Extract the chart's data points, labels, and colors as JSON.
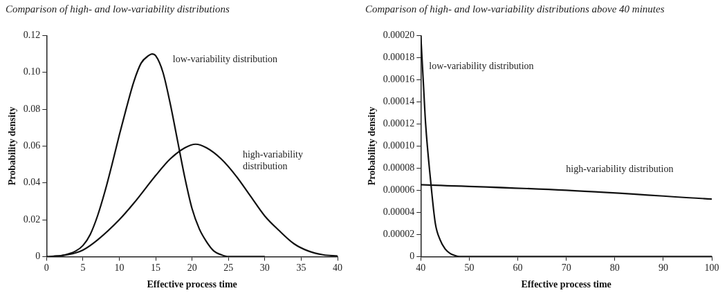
{
  "chart_data": [
    {
      "type": "line",
      "title": "Comparison of high- and low-variability distributions",
      "xlabel": "Effective process time",
      "ylabel": "Probability density",
      "xlim": [
        0,
        40
      ],
      "xticks": [
        0,
        5,
        10,
        15,
        20,
        25,
        30,
        35,
        40
      ],
      "ylim": [
        0,
        0.12
      ],
      "yticks": [
        0,
        {
          "value": 0.02,
          "label": "0.02"
        },
        {
          "value": 0.04,
          "label": "0.04"
        },
        {
          "value": 0.06,
          "label": "0.06"
        },
        {
          "value": 0.08,
          "label": "0.08"
        },
        {
          "value": 0.1,
          "label": "0.10"
        },
        {
          "value": 0.12,
          "label": "0.12"
        }
      ],
      "grid": false,
      "legend": false,
      "marker": "none",
      "line_style": "solid",
      "series": [
        {
          "name": "low-variability distribution",
          "color": "#111111",
          "x": [
            1,
            2,
            4,
            5,
            6,
            7,
            8,
            9,
            10,
            11,
            12,
            13,
            14,
            14.5,
            15,
            16,
            17,
            18,
            19,
            20,
            21,
            22,
            23,
            24,
            25,
            30
          ],
          "values": [
            0.0002,
            0.0005,
            0.003,
            0.006,
            0.012,
            0.022,
            0.035,
            0.05,
            0.066,
            0.081,
            0.095,
            0.105,
            0.109,
            0.11,
            0.109,
            0.1,
            0.083,
            0.063,
            0.043,
            0.026,
            0.015,
            0.008,
            0.003,
            0.001,
            0,
            0
          ]
        },
        {
          "name": "high-variability\ndistribution",
          "color": "#111111",
          "x": [
            0,
            2,
            4,
            5,
            7,
            10,
            12,
            15,
            17,
            19,
            20.5,
            22,
            24,
            26,
            28,
            30,
            32,
            34,
            36,
            38,
            40
          ],
          "values": [
            0,
            0.0005,
            0.002,
            0.0035,
            0.009,
            0.02,
            0.029,
            0.044,
            0.053,
            0.059,
            0.061,
            0.059,
            0.053,
            0.044,
            0.033,
            0.022,
            0.014,
            0.007,
            0.003,
            0.001,
            0.0003
          ]
        }
      ]
    },
    {
      "type": "line",
      "title": "Comparison of high- and low-variability distributions above 40 minutes",
      "xlabel": "Effective process time",
      "ylabel": "Probability density",
      "xlim": [
        40,
        100
      ],
      "xticks": [
        40,
        50,
        60,
        70,
        80,
        90,
        100
      ],
      "ylim": [
        0,
        0.0002
      ],
      "yticks": [
        0,
        {
          "value": 2e-05,
          "label": "0.00002"
        },
        {
          "value": 4e-05,
          "label": "0.00004"
        },
        {
          "value": 6e-05,
          "label": "0.00006"
        },
        {
          "value": 8e-05,
          "label": "0.00008"
        },
        {
          "value": 0.0001,
          "label": "0.00010"
        },
        {
          "value": 0.00012,
          "label": "0.00012"
        },
        {
          "value": 0.00014,
          "label": "0.00014"
        },
        {
          "value": 0.00016,
          "label": "0.00016"
        },
        {
          "value": 0.00018,
          "label": "0.00018"
        },
        {
          "value": 0.0002,
          "label": "0.00020"
        }
      ],
      "grid": false,
      "legend": false,
      "marker": "none",
      "line_style": "solid",
      "series": [
        {
          "name": "low-variability distribution",
          "color": "#111111",
          "x": [
            40,
            40.5,
            41,
            42,
            43,
            44,
            45,
            46,
            47,
            48,
            60,
            80,
            100
          ],
          "values": [
            0.0002,
            0.00016,
            0.00012,
            7e-05,
            3e-05,
            1.5e-05,
            7e-06,
            3e-06,
            1e-06,
            0,
            0,
            0,
            0
          ]
        },
        {
          "name": "high-variability distribution",
          "color": "#111111",
          "x": [
            40,
            70,
            100
          ],
          "values": [
            6.5e-05,
            6e-05,
            5.2e-05
          ]
        }
      ]
    }
  ]
}
